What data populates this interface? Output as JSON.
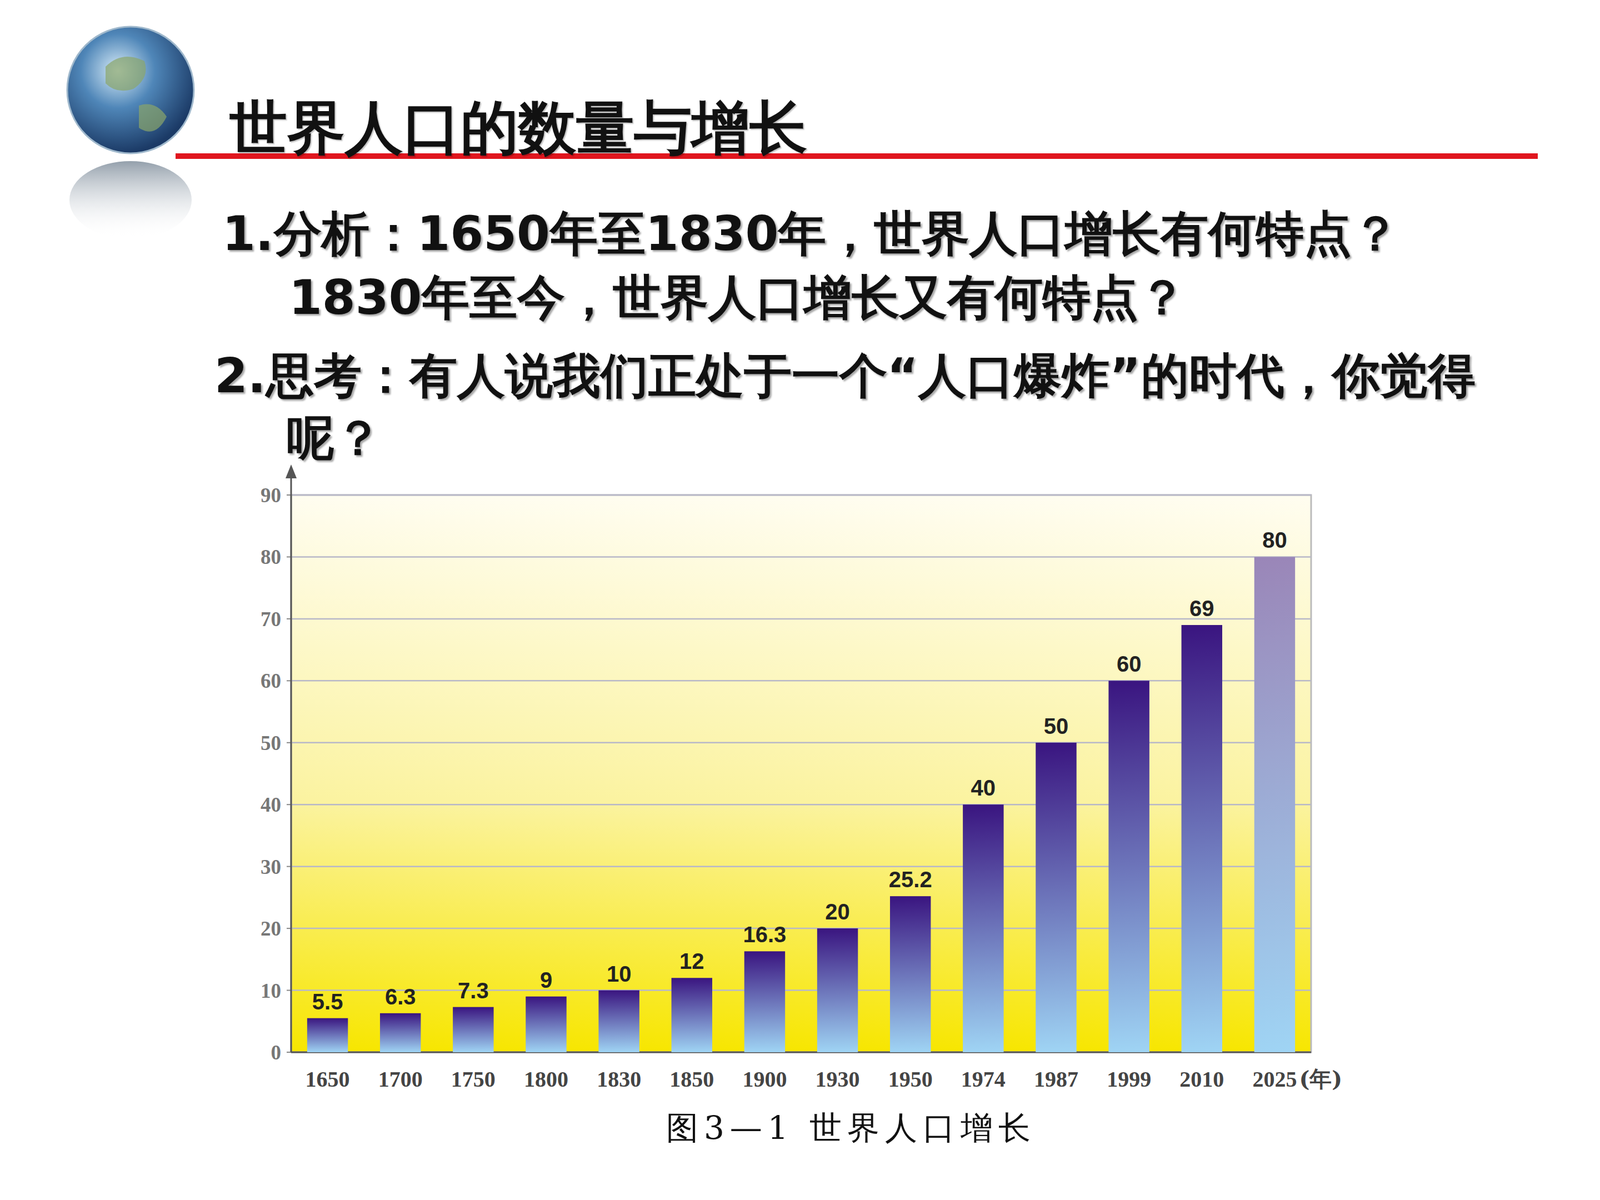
{
  "slide": {
    "title": "世界人口的数量与增长",
    "questions": [
      "1.分析：1650年至1830年，世界人口增长有何特点？",
      "1830年至今，世界人口增长又有何特点？",
      "2.思考：有人说我们正处于一个“人口爆炸”的时代，你觉得呢？"
    ]
  },
  "chart_data": {
    "type": "bar",
    "categories": [
      "1650",
      "1700",
      "1750",
      "1800",
      "1830",
      "1850",
      "1900",
      "1930",
      "1950",
      "1974",
      "1987",
      "1999",
      "2010",
      "2025"
    ],
    "values": [
      5.5,
      6.3,
      7.3,
      9,
      10,
      12,
      16.3,
      20,
      25.2,
      40,
      50,
      60,
      69,
      80
    ],
    "colors": [
      "#3a1580",
      "#3a1580",
      "#3a1580",
      "#3a1580",
      "#3a1580",
      "#3a1580",
      "#3a1580",
      "#3a1580",
      "#3a1580",
      "#3a1580",
      "#3a1580",
      "#3a1580",
      "#3a1580",
      "#9a86b8"
    ],
    "ylim": [
      0,
      90
    ],
    "yticks": [
      0,
      10,
      20,
      30,
      40,
      50,
      60,
      70,
      80,
      90
    ],
    "grid": true,
    "data_labels": true,
    "x_label": "(年)",
    "caption": "图3—1 世界人口增长"
  }
}
